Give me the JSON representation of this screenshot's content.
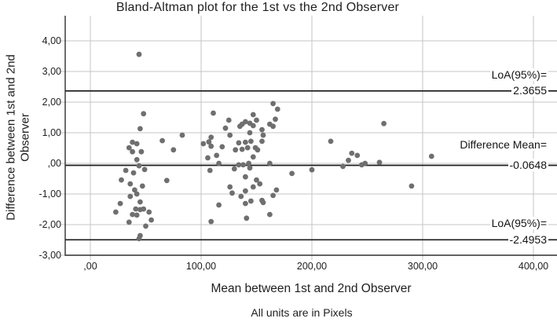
{
  "colors": {
    "point": "#6f6f6f",
    "grid": "#c6c6c6",
    "axis": "#2e2e2e",
    "ref_line": "#1c1c1c",
    "background": "#ffffff"
  },
  "chart_data": {
    "type": "scatter",
    "title": "Bland-Altman plot for the 1st vs the 2nd Observer",
    "xlabel": "Mean between 1st and 2nd Observer",
    "ylabel": "Difference between 1st and 2nd Observer",
    "ylabel_lines": [
      "Difference between 1st and 2nd",
      "Observer"
    ],
    "caption": "All units are in Pixels",
    "units": "Pixels",
    "grid": true,
    "xlim": [
      -23,
      421
    ],
    "ylim": [
      -3,
      4.8
    ],
    "x_ticks": [
      0,
      100,
      200,
      300,
      400
    ],
    "x_tick_labels": [
      ",00",
      "100,00",
      "200,00",
      "300,00",
      "400,00"
    ],
    "y_ticks": [
      4,
      3,
      2,
      1,
      0,
      -1,
      -2,
      -3
    ],
    "y_tick_labels": [
      "4,00",
      "3,00",
      "2,00",
      "1,00",
      ",00",
      "-1,00",
      "-2,00",
      "-3,00"
    ],
    "reference_lines": {
      "loa_upper": {
        "value": 2.3655,
        "label": "LoA(95%)=",
        "value_label": "2.3655"
      },
      "mean": {
        "value": -0.0648,
        "label": "Difference Mean=",
        "value_label": "-0.0648"
      },
      "loa_lower": {
        "value": -2.4953,
        "label": "LoA(95%)=",
        "value_label": "-2.4953"
      }
    },
    "points": [
      [
        44,
        3.56
      ],
      [
        48,
        1.62
      ],
      [
        45,
        1.13
      ],
      [
        38,
        0.69
      ],
      [
        42,
        0.64
      ],
      [
        35,
        0.51
      ],
      [
        38,
        0.38
      ],
      [
        46,
        0.38
      ],
      [
        42,
        0.12
      ],
      [
        65,
        0.74
      ],
      [
        75,
        0.44
      ],
      [
        83,
        0.92
      ],
      [
        44,
        -0.08
      ],
      [
        49,
        -0.2
      ],
      [
        32,
        -0.23
      ],
      [
        39,
        -0.31
      ],
      [
        28,
        -0.54
      ],
      [
        36,
        -0.67
      ],
      [
        47,
        -0.74
      ],
      [
        69,
        -0.56
      ],
      [
        40,
        -0.87
      ],
      [
        42,
        -1.0
      ],
      [
        36,
        -1.08
      ],
      [
        45,
        -1.26
      ],
      [
        27,
        -1.31
      ],
      [
        23,
        -1.59
      ],
      [
        41,
        -1.49
      ],
      [
        45,
        -1.51
      ],
      [
        48,
        -1.49
      ],
      [
        38,
        -1.67
      ],
      [
        42,
        -1.69
      ],
      [
        53,
        -1.59
      ],
      [
        55,
        -1.85
      ],
      [
        35,
        -1.92
      ],
      [
        50,
        -2.05
      ],
      [
        45,
        -2.36
      ],
      [
        44,
        -2.46
      ],
      [
        111,
        1.64
      ],
      [
        125,
        1.41
      ],
      [
        122,
        1.15
      ],
      [
        126,
        0.92
      ],
      [
        147,
        1.59
      ],
      [
        150,
        1.41
      ],
      [
        140,
        1.36
      ],
      [
        144,
        1.31
      ],
      [
        137,
        1.28
      ],
      [
        147,
        1.23
      ],
      [
        135,
        1.21
      ],
      [
        144,
        1.0
      ],
      [
        165,
        1.95
      ],
      [
        169,
        1.77
      ],
      [
        167,
        1.44
      ],
      [
        162,
        1.28
      ],
      [
        165,
        1.21
      ],
      [
        155,
        1.1
      ],
      [
        156,
        0.92
      ],
      [
        102,
        0.64
      ],
      [
        107,
        0.7
      ],
      [
        109,
        0.85
      ],
      [
        109,
        0.56
      ],
      [
        119,
        0.54
      ],
      [
        134,
        0.67
      ],
      [
        140,
        0.69
      ],
      [
        145,
        0.72
      ],
      [
        155,
        0.72
      ],
      [
        131,
        0.44
      ],
      [
        137,
        0.46
      ],
      [
        151,
        0.44
      ],
      [
        106,
        0.18
      ],
      [
        114,
        0.26
      ],
      [
        116,
        0.0
      ],
      [
        142,
        0.51
      ],
      [
        149,
        0.51
      ],
      [
        147,
        0.21
      ],
      [
        134,
        -0.05
      ],
      [
        138,
        -0.05
      ],
      [
        143,
        0.0
      ],
      [
        162,
        0.0
      ],
      [
        144,
        -0.15
      ],
      [
        130,
        -0.18
      ],
      [
        108,
        -0.23
      ],
      [
        140,
        -0.44
      ],
      [
        150,
        -0.54
      ],
      [
        153,
        -0.67
      ],
      [
        147,
        -0.77
      ],
      [
        126,
        -0.77
      ],
      [
        128,
        -0.97
      ],
      [
        136,
        -1.08
      ],
      [
        140,
        -0.9
      ],
      [
        168,
        -0.87
      ],
      [
        165,
        -1.05
      ],
      [
        155,
        -1.21
      ],
      [
        156,
        -1.28
      ],
      [
        140,
        -1.31
      ],
      [
        145,
        -1.23
      ],
      [
        116,
        -1.36
      ],
      [
        162,
        -1.67
      ],
      [
        141,
        -1.79
      ],
      [
        109,
        -1.9
      ],
      [
        182,
        -0.33
      ],
      [
        200,
        -0.21
      ],
      [
        217,
        0.72
      ],
      [
        236,
        0.33
      ],
      [
        241,
        0.26
      ],
      [
        233,
        0.1
      ],
      [
        245,
        -0.05
      ],
      [
        248,
        0.0
      ],
      [
        228,
        -0.1
      ],
      [
        261,
        0.03
      ],
      [
        265,
        1.3
      ],
      [
        290,
        -0.74
      ],
      [
        308,
        0.23
      ]
    ]
  }
}
